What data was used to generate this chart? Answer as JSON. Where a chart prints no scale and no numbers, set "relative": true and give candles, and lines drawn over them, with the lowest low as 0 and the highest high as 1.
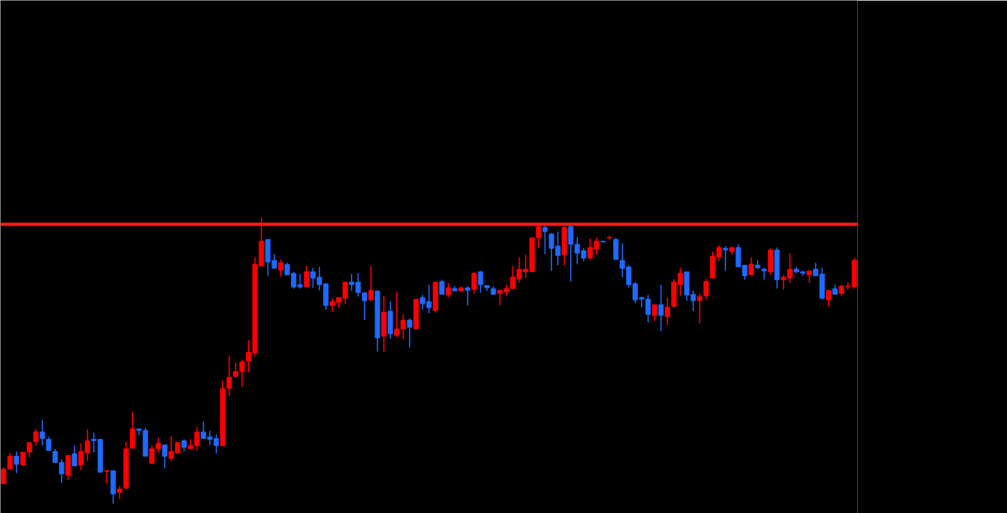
{
  "chart_data": {
    "type": "candlestick",
    "relative": true,
    "categories": [
      null,
      null,
      null,
      null,
      null,
      null,
      null,
      null,
      null,
      null,
      null,
      null,
      null,
      null,
      null,
      null,
      null,
      null,
      null,
      null,
      null,
      null,
      null,
      null,
      null,
      null,
      null,
      null,
      null,
      null,
      null,
      null,
      null,
      null,
      null,
      null,
      null,
      null,
      null,
      null,
      null,
      null,
      null,
      null,
      null,
      null,
      null,
      null,
      null,
      null,
      null,
      null,
      null,
      null,
      null,
      null,
      null,
      null,
      null,
      null,
      null,
      null,
      null,
      null,
      null,
      null,
      null,
      null,
      null,
      null,
      null,
      null,
      null,
      null,
      null,
      null,
      null,
      null,
      null,
      null,
      null,
      null,
      null,
      null,
      null,
      null,
      null,
      null,
      null,
      null,
      null,
      null,
      null,
      null,
      null,
      null,
      null,
      null,
      null,
      null,
      null,
      null,
      null,
      null,
      null,
      null,
      null,
      null,
      null,
      null,
      null,
      null,
      null,
      null,
      null,
      null,
      null,
      null,
      null,
      null,
      null,
      null,
      null,
      null,
      null,
      null,
      null,
      null,
      null,
      null,
      null,
      null,
      null
    ],
    "ohlc": [
      [
        0.07,
        0.127,
        0.07,
        0.121
      ],
      [
        0.121,
        0.177,
        0.121,
        0.166
      ],
      [
        0.166,
        0.183,
        0.107,
        0.138
      ],
      [
        0.135,
        0.18,
        0.135,
        0.18
      ],
      [
        0.18,
        0.214,
        0.163,
        0.214
      ],
      [
        0.217,
        0.262,
        0.203,
        0.251
      ],
      [
        0.251,
        0.293,
        0.203,
        0.228
      ],
      [
        0.225,
        0.234,
        0.186,
        0.186
      ],
      [
        0.183,
        0.192,
        0.144,
        0.144
      ],
      [
        0.144,
        0.155,
        0.073,
        0.104
      ],
      [
        0.099,
        0.169,
        0.082,
        0.169
      ],
      [
        0.175,
        0.203,
        0.132,
        0.132
      ],
      [
        0.135,
        0.211,
        0.118,
        0.183
      ],
      [
        0.177,
        0.259,
        0.149,
        0.22
      ],
      [
        0.225,
        0.248,
        0.18,
        0.22
      ],
      [
        0.225,
        0.225,
        0.11,
        0.11
      ],
      [
        0.113,
        0.118,
        0.07,
        0.115
      ],
      [
        0.115,
        0.115,
        0,
        0.034
      ],
      [
        0.039,
        0.062,
        0.017,
        0.051
      ],
      [
        0.054,
        0.217,
        0.051,
        0.192
      ],
      [
        0.194,
        0.321,
        0.192,
        0.262
      ],
      [
        0.262,
        0.262,
        0.239,
        0.256
      ],
      [
        0.256,
        0.265,
        0.166,
        0.166
      ],
      [
        0.141,
        0.203,
        0.141,
        0.192
      ],
      [
        0.192,
        0.231,
        0.177,
        0.211
      ],
      [
        0.206,
        0.206,
        0.124,
        0.166
      ],
      [
        0.158,
        0.237,
        0.149,
        0.183
      ],
      [
        0.177,
        0.214,
        0.177,
        0.214
      ],
      [
        0.22,
        0.225,
        0.183,
        0.197
      ],
      [
        0.192,
        0.225,
        0.192,
        0.203
      ],
      [
        0.203,
        0.268,
        0.186,
        0.251
      ],
      [
        0.251,
        0.287,
        0.228,
        0.228
      ],
      [
        0.234,
        0.256,
        0.206,
        0.225
      ],
      [
        0.228,
        0.242,
        0.175,
        0.203
      ],
      [
        0.203,
        0.431,
        0.203,
        0.403
      ],
      [
        0.403,
        0.518,
        0.377,
        0.442
      ],
      [
        0.445,
        0.493,
        0.439,
        0.462
      ],
      [
        0.462,
        0.504,
        0.408,
        0.496
      ],
      [
        0.499,
        0.572,
        0.459,
        0.53
      ],
      [
        0.527,
        0.862,
        0.513,
        0.837
      ],
      [
        0.831,
        1,
        0.831,
        0.918
      ],
      [
        0.924,
        0.924,
        0.797,
        0.845
      ],
      [
        0.851,
        0.873,
        0.823,
        0.823
      ],
      [
        0.817,
        0.854,
        0.794,
        0.842
      ],
      [
        0.837,
        0.842,
        0.8,
        0.8
      ],
      [
        0.806,
        0.811,
        0.752,
        0.758
      ],
      [
        0.766,
        0.803,
        0.752,
        0.758
      ],
      [
        0.758,
        0.831,
        0.758,
        0.811
      ],
      [
        0.811,
        0.825,
        0.755,
        0.789
      ],
      [
        0.792,
        0.828,
        0.746,
        0.766
      ],
      [
        0.769,
        0.769,
        0.679,
        0.693
      ],
      [
        0.693,
        0.718,
        0.67,
        0.707
      ],
      [
        0.704,
        0.721,
        0.685,
        0.721
      ],
      [
        0.718,
        0.775,
        0.699,
        0.775
      ],
      [
        0.775,
        0.803,
        0.744,
        0.766
      ],
      [
        0.775,
        0.806,
        0.724,
        0.738
      ],
      [
        0.738,
        0.738,
        0.642,
        0.71
      ],
      [
        0.713,
        0.831,
        0.707,
        0.746
      ],
      [
        0.744,
        0.744,
        0.532,
        0.58
      ],
      [
        0.586,
        0.727,
        0.53,
        0.67
      ],
      [
        0.673,
        0.707,
        0.577,
        0.594
      ],
      [
        0.589,
        0.741,
        0.58,
        0.611
      ],
      [
        0.611,
        0.662,
        0.575,
        0.642
      ],
      [
        0.642,
        0.648,
        0.546,
        0.617
      ],
      [
        0.611,
        0.715,
        0.611,
        0.715
      ],
      [
        0.721,
        0.73,
        0.679,
        0.699
      ],
      [
        0.707,
        0.766,
        0.665,
        0.685
      ],
      [
        0.676,
        0.775,
        0.668,
        0.775
      ],
      [
        0.777,
        0.783,
        0.732,
        0.732
      ],
      [
        0.73,
        0.772,
        0.721,
        0.755
      ],
      [
        0.752,
        0.761,
        0.744,
        0.744
      ],
      [
        0.744,
        0.758,
        0.741,
        0.755
      ],
      [
        0.755,
        0.761,
        0.693,
        0.746
      ],
      [
        0.749,
        0.808,
        0.735,
        0.806
      ],
      [
        0.811,
        0.814,
        0.738,
        0.766
      ],
      [
        0.763,
        0.763,
        0.744,
        0.755
      ],
      [
        0.752,
        0.761,
        0.732,
        0.732
      ],
      [
        0.735,
        0.746,
        0.693,
        0.746
      ],
      [
        0.741,
        0.766,
        0.727,
        0.752
      ],
      [
        0.752,
        0.831,
        0.752,
        0.792
      ],
      [
        0.786,
        0.862,
        0.772,
        0.82
      ],
      [
        0.811,
        0.87,
        0.789,
        0.82
      ],
      [
        0.811,
        0.93,
        0.811,
        0.93
      ],
      [
        0.93,
        0.975,
        0.893,
        0.969
      ],
      [
        0.966,
        0.972,
        0.873,
        0.952
      ],
      [
        0.944,
        0.946,
        0.814,
        0.893
      ],
      [
        0.901,
        0.952,
        0.834,
        0.868
      ],
      [
        0.87,
        0.969,
        0.834,
        0.966
      ],
      [
        0.969,
        0.975,
        0.777,
        0.907
      ],
      [
        0.907,
        0.932,
        0.837,
        0.876
      ],
      [
        0.885,
        0.893,
        0.848,
        0.859
      ],
      [
        0.859,
        0.927,
        0.854,
        0.896
      ],
      [
        0.89,
        0.93,
        0.87,
        0.918
      ],
      [
        0.918,
        0.918,
        0.915,
        0.915
      ],
      [
        0.93,
        0.935,
        0.921,
        0.932
      ],
      [
        0.924,
        0.93,
        0.854,
        0.854
      ],
      [
        0.851,
        0.91,
        0.792,
        0.823
      ],
      [
        0.828,
        0.834,
        0.755,
        0.766
      ],
      [
        0.769,
        0.775,
        0.701,
        0.713
      ],
      [
        0.721,
        0.724,
        0.687,
        0.715
      ],
      [
        0.715,
        0.73,
        0.634,
        0.662
      ],
      [
        0.659,
        0.696,
        0.639,
        0.696
      ],
      [
        0.696,
        0.766,
        0.603,
        0.659
      ],
      [
        0.654,
        0.721,
        0.625,
        0.687
      ],
      [
        0.69,
        0.786,
        0.685,
        0.775
      ],
      [
        0.766,
        0.825,
        0.727,
        0.806
      ],
      [
        0.811,
        0.811,
        0.71,
        0.73
      ],
      [
        0.732,
        0.746,
        0.673,
        0.71
      ],
      [
        0.71,
        0.735,
        0.631,
        0.724
      ],
      [
        0.727,
        0.786,
        0.713,
        0.777
      ],
      [
        0.789,
        0.882,
        0.789,
        0.865
      ],
      [
        0.862,
        0.904,
        0.848,
        0.896
      ],
      [
        0.893,
        0.901,
        0.814,
        0.887
      ],
      [
        0.882,
        0.899,
        0.87,
        0.896
      ],
      [
        0.896,
        0.907,
        0.828,
        0.828
      ],
      [
        0.834,
        0.834,
        0.783,
        0.797
      ],
      [
        0.8,
        0.862,
        0.8,
        0.837
      ],
      [
        0.834,
        0.851,
        0.82,
        0.825
      ],
      [
        0.82,
        0.825,
        0.783,
        0.814
      ],
      [
        0.811,
        0.893,
        0.8,
        0.887
      ],
      [
        0.887,
        0.896,
        0.752,
        0.783
      ],
      [
        0.783,
        0.8,
        0.749,
        0.792
      ],
      [
        0.789,
        0.876,
        0.772,
        0.82
      ],
      [
        0.82,
        0.828,
        0.806,
        0.811
      ],
      [
        0.811,
        0.814,
        0.797,
        0.806
      ],
      [
        0.8,
        0.814,
        0.772,
        0.814
      ],
      [
        0.82,
        0.842,
        0.797,
        0.797
      ],
      [
        0.803,
        0.825,
        0.715,
        0.718
      ],
      [
        0.713,
        0.746,
        0.69,
        0.746
      ],
      [
        0.752,
        0.766,
        0.732,
        0.732
      ],
      [
        0.735,
        0.766,
        0.727,
        0.761
      ],
      [
        0.758,
        0.775,
        0.749,
        0.761
      ],
      [
        0.758,
        0.859,
        0.752,
        0.851
      ]
    ],
    "colors": [
      "#ff0000",
      "#ff0000",
      "#1e6bff",
      "#ff0000",
      "#ff0000",
      "#ff0000",
      "#1e6bff",
      "#1e6bff",
      "#1e6bff",
      "#1e6bff",
      "#ff0000",
      "#1e6bff",
      "#ff0000",
      "#ff0000",
      "#1e6bff",
      "#1e6bff",
      "#ff0000",
      "#1e6bff",
      "#ff0000",
      "#ff0000",
      "#ff0000",
      "#1e6bff",
      "#1e6bff",
      "#ff0000",
      "#ff0000",
      "#1e6bff",
      "#ff0000",
      "#ff0000",
      "#1e6bff",
      "#ff0000",
      "#ff0000",
      "#1e6bff",
      "#1e6bff",
      "#1e6bff",
      "#ff0000",
      "#ff0000",
      "#ff0000",
      "#ff0000",
      "#ff0000",
      "#ff0000",
      "#ff0000",
      "#1e6bff",
      "#1e6bff",
      "#ff0000",
      "#1e6bff",
      "#1e6bff",
      "#1e6bff",
      "#ff0000",
      "#1e6bff",
      "#1e6bff",
      "#1e6bff",
      "#ff0000",
      "#ff0000",
      "#ff0000",
      "#1e6bff",
      "#1e6bff",
      "#1e6bff",
      "#ff0000",
      "#1e6bff",
      "#ff0000",
      "#1e6bff",
      "#ff0000",
      "#ff0000",
      "#1e6bff",
      "#ff0000",
      "#1e6bff",
      "#1e6bff",
      "#ff0000",
      "#1e6bff",
      "#ff0000",
      "#1e6bff",
      "#ff0000",
      "#1e6bff",
      "#ff0000",
      "#1e6bff",
      "#1e6bff",
      "#1e6bff",
      "#ff0000",
      "#ff0000",
      "#ff0000",
      "#ff0000",
      "#ff0000",
      "#ff0000",
      "#ff0000",
      "#1e6bff",
      "#1e6bff",
      "#1e6bff",
      "#ff0000",
      "#1e6bff",
      "#1e6bff",
      "#1e6bff",
      "#ff0000",
      "#ff0000",
      "#1e6bff",
      "#ff0000",
      "#1e6bff",
      "#1e6bff",
      "#1e6bff",
      "#1e6bff",
      "#1e6bff",
      "#1e6bff",
      "#ff0000",
      "#1e6bff",
      "#ff0000",
      "#ff0000",
      "#ff0000",
      "#1e6bff",
      "#1e6bff",
      "#ff0000",
      "#ff0000",
      "#ff0000",
      "#ff0000",
      "#1e6bff",
      "#ff0000",
      "#1e6bff",
      "#1e6bff",
      "#ff0000",
      "#1e6bff",
      "#1e6bff",
      "#ff0000",
      "#1e6bff",
      "#ff0000",
      "#ff0000",
      "#1e6bff",
      "#1e6bff",
      "#ff0000",
      "#1e6bff",
      "#1e6bff",
      "#ff0000",
      "#1e6bff",
      "#ff0000",
      "#ff0000",
      "#ff0000"
    ],
    "ref_lines": [
      {
        "axis": "y",
        "value": 0.977,
        "color": "#ff1a1a",
        "line_style": "solid"
      }
    ]
  }
}
